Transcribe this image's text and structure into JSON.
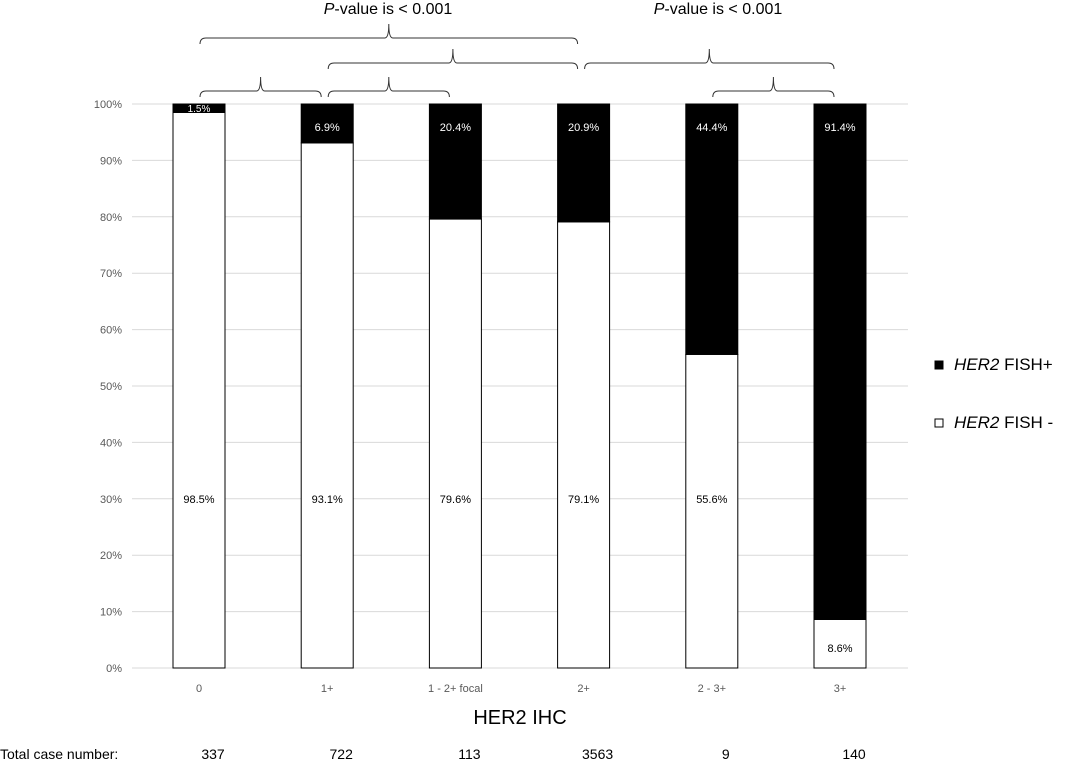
{
  "chart_data": {
    "type": "bar",
    "stacked": true,
    "xlabel": "HER2 IHC",
    "ylabel": "",
    "ylim": [
      0,
      100
    ],
    "yticks": [
      "0%",
      "10%",
      "20%",
      "30%",
      "40%",
      "50%",
      "60%",
      "70%",
      "80%",
      "90%",
      "100%"
    ],
    "grid": true,
    "legend_position": "right",
    "categories": [
      "0",
      "1+",
      "1 - 2+ focal",
      "2+",
      "2 - 3+",
      "3+"
    ],
    "series": [
      {
        "name": "FISH -",
        "name_italic": "HER2",
        "legend_label": "HER2 FISH -",
        "color": "#ffffff",
        "values": [
          98.5,
          93.1,
          79.6,
          79.1,
          55.6,
          8.6
        ],
        "labels": [
          "98.5%",
          "93.1%",
          "79.6%",
          "79.1%",
          "55.6%",
          "8.6%"
        ]
      },
      {
        "name": "FISH+",
        "name_italic": "HER2",
        "legend_label": "HER2 FISH+",
        "color": "#000000",
        "values": [
          1.5,
          6.9,
          20.4,
          20.9,
          44.4,
          91.4
        ],
        "labels": [
          "1.5%",
          "6.9%",
          "20.4%",
          "20.9%",
          "44.4%",
          "91.4%"
        ]
      }
    ],
    "case_numbers_label": "Total case number:",
    "case_numbers": [
      "337",
      "722",
      "113",
      "3563",
      "9",
      "140"
    ],
    "annotations": [
      {
        "italic": "P",
        "text": "-value is < 0.001",
        "from": 0,
        "to": 3
      },
      {
        "italic": "P",
        "text": "-value is < 0.001",
        "from": 3,
        "to": 5
      }
    ],
    "brackets": [
      {
        "from": 0,
        "to": 1,
        "level": 0
      },
      {
        "from": 1,
        "to": 2,
        "level": 0
      },
      {
        "from": 4,
        "to": 5,
        "level": 0
      },
      {
        "from": 1,
        "to": 3,
        "level": 1
      },
      {
        "from": 3,
        "to": 5,
        "level": 1
      },
      {
        "from": 0,
        "to": 3,
        "level": 2
      }
    ]
  }
}
